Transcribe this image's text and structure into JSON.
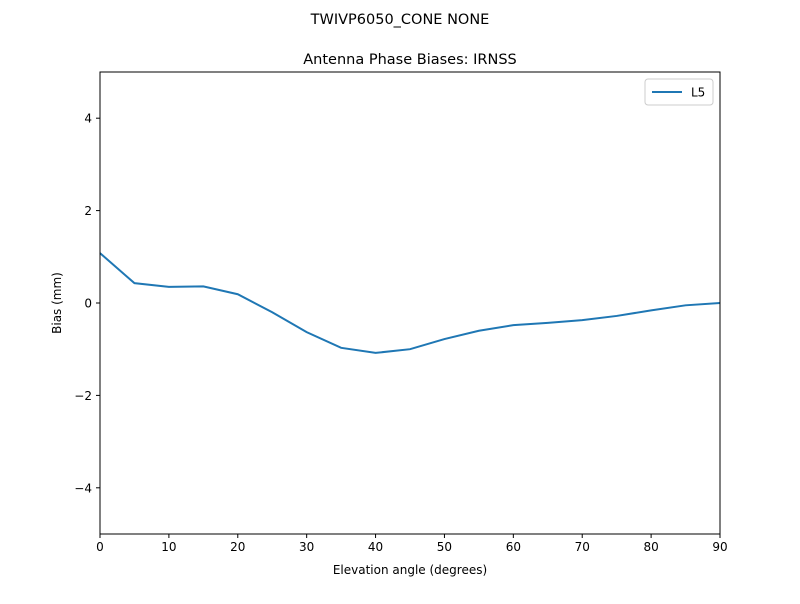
{
  "suptitle": "TWIVP6050_CONE  NONE",
  "chart_data": {
    "type": "line",
    "title": "Antenna Phase Biases: IRNSS",
    "xlabel": "Elevation angle (degrees)",
    "ylabel": "Bias (mm)",
    "xlim": [
      0,
      90
    ],
    "ylim": [
      -5,
      5
    ],
    "xticks": [
      0,
      10,
      20,
      30,
      40,
      50,
      60,
      70,
      80,
      90
    ],
    "yticks": [
      -4,
      -2,
      0,
      2,
      4
    ],
    "ytick_labels": [
      "−4",
      "−2",
      "0",
      "2",
      "4"
    ],
    "legend_position": "upper right",
    "grid": false,
    "x": [
      0,
      5,
      10,
      15,
      20,
      25,
      30,
      35,
      40,
      45,
      50,
      55,
      60,
      65,
      70,
      75,
      80,
      85,
      90
    ],
    "series": [
      {
        "name": "L5",
        "color": "#1f77b4",
        "values": [
          1.08,
          0.43,
          0.35,
          0.36,
          0.19,
          -0.2,
          -0.63,
          -0.97,
          -1.08,
          -1.0,
          -0.78,
          -0.6,
          -0.48,
          -0.43,
          -0.37,
          -0.28,
          -0.16,
          -0.05,
          0.0
        ]
      }
    ]
  }
}
